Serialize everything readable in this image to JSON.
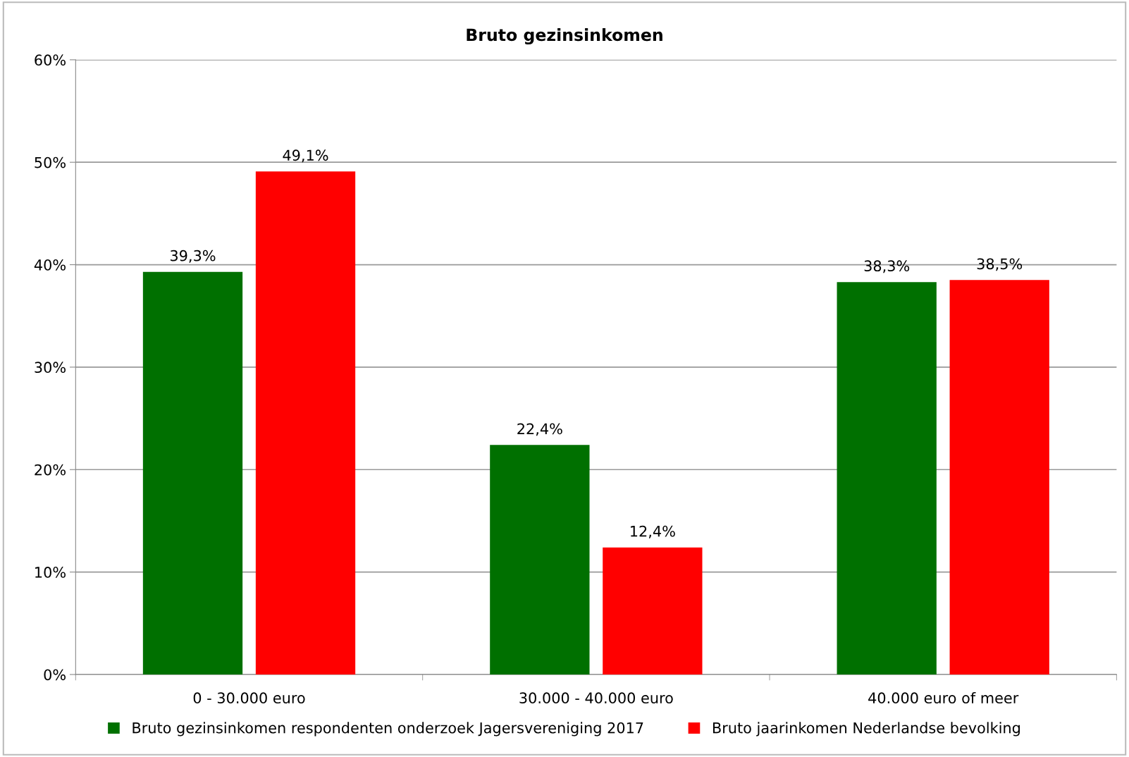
{
  "chart_data": {
    "type": "bar",
    "title": "Bruto gezinsinkomen",
    "categories": [
      "0 - 30.000 euro",
      "30.000 - 40.000 euro",
      "40.000 euro of meer"
    ],
    "series": [
      {
        "name": "Bruto gezinsinkomen respondenten onderzoek Jagersvereniging 2017",
        "color": "#007000",
        "values": [
          39.3,
          22.4,
          38.3
        ],
        "value_labels": [
          "39,3%",
          "22,4%",
          "38,3%"
        ]
      },
      {
        "name": "Bruto jaarinkomen Nederlandse bevolking",
        "color": "#ff0000",
        "values": [
          49.1,
          12.4,
          38.5
        ],
        "value_labels": [
          "49,1%",
          "12,4%",
          "38,5%"
        ]
      }
    ],
    "ylim": [
      0,
      60
    ],
    "yticks": [
      {
        "value": 0,
        "label": "0%"
      },
      {
        "value": 10,
        "label": "10%"
      },
      {
        "value": 20,
        "label": "20%"
      },
      {
        "value": 30,
        "label": "30%"
      },
      {
        "value": 40,
        "label": "40%"
      },
      {
        "value": 50,
        "label": "50%"
      },
      {
        "value": 60,
        "label": "60%"
      }
    ],
    "grid": "y",
    "legend": "bottom"
  }
}
